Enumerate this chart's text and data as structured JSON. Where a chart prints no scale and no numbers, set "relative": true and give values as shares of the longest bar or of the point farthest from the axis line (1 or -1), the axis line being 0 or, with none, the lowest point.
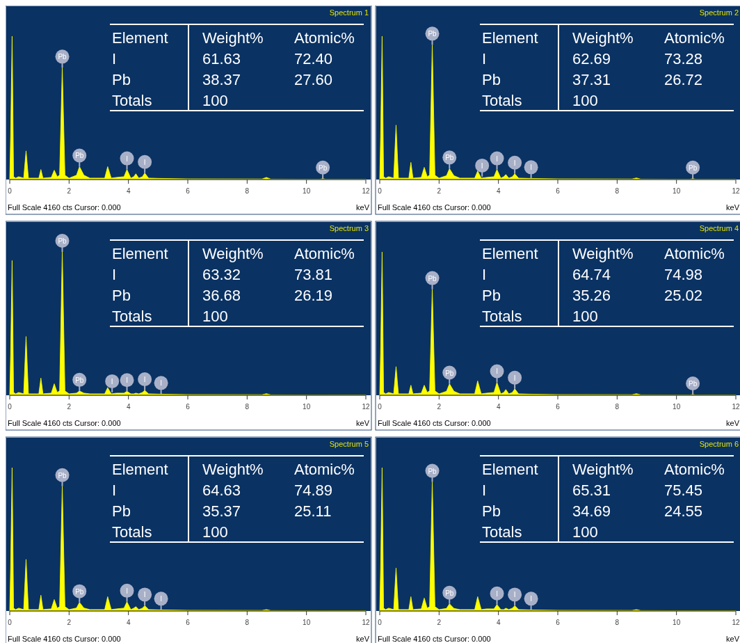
{
  "chart_data": [
    {
      "type": "area",
      "title": "Spectrum 1",
      "xlabel": "keV",
      "relative": true,
      "color": "#ffff00",
      "xlim": [
        0,
        12
      ],
      "xticks": [
        0,
        2,
        4,
        6,
        8,
        10,
        12
      ],
      "x": [
        0,
        0.03,
        0.08,
        0.13,
        0.2,
        0.3,
        0.47,
        0.55,
        0.63,
        0.75,
        0.98,
        1.05,
        1.12,
        1.4,
        1.5,
        1.6,
        1.68,
        1.77,
        1.86,
        2.0,
        2.25,
        2.35,
        2.5,
        2.7,
        3.2,
        3.3,
        3.42,
        3.6,
        3.85,
        3.95,
        4.08,
        4.18,
        4.25,
        4.35,
        4.47,
        4.55,
        4.68,
        5.0,
        6.0,
        8.5,
        8.65,
        8.8,
        10.45,
        10.55,
        10.65,
        12
      ],
      "values": [
        0,
        0.3,
        1,
        0.02,
        0.01,
        0.02,
        0.01,
        0.2,
        0.01,
        0.01,
        0.01,
        0.07,
        0.01,
        0.015,
        0.065,
        0.02,
        0.03,
        0.78,
        0.03,
        0.01,
        0.03,
        0.09,
        0.03,
        0.01,
        0.01,
        0.09,
        0.01,
        0.015,
        0.02,
        0.07,
        0.01,
        0.02,
        0.04,
        0.01,
        0.02,
        0.045,
        0.01,
        0.008,
        0.005,
        0.004,
        0.015,
        0.003,
        0.002,
        0.006,
        0.002,
        0.002
      ],
      "annotations": [
        "Element",
        "Weight%",
        "Atomic%",
        "I",
        "61.63",
        "72.40",
        "Pb",
        "38.37",
        "27.60",
        "Totals",
        "100",
        "Full Scale 4160 cts Cursor: 0.000",
        {
          "text": "Pb",
          "x": 1.77,
          "y": 0.78
        },
        {
          "text": "Pb",
          "x": 2.35,
          "y": 0.09
        },
        {
          "text": "I",
          "x": 3.95,
          "y": 0.07
        },
        {
          "text": "I",
          "x": 4.55,
          "y": 0.045
        },
        {
          "text": "Pb",
          "x": 10.55,
          "y": 0.006
        }
      ]
    },
    {
      "type": "area",
      "title": "Spectrum 2",
      "xlabel": "keV",
      "relative": true,
      "color": "#ffff00",
      "xlim": [
        0,
        12
      ],
      "xticks": [
        0,
        2,
        4,
        6,
        8,
        10,
        12
      ],
      "x": [
        0,
        0.03,
        0.08,
        0.13,
        0.2,
        0.3,
        0.47,
        0.55,
        0.63,
        0.75,
        0.98,
        1.05,
        1.12,
        1.4,
        1.5,
        1.6,
        1.68,
        1.77,
        1.86,
        2.0,
        2.25,
        2.35,
        2.5,
        2.7,
        3.2,
        3.3,
        3.42,
        3.6,
        3.85,
        3.95,
        4.08,
        4.18,
        4.25,
        4.35,
        4.47,
        4.55,
        4.68,
        5.0,
        6.0,
        8.5,
        8.65,
        8.8,
        10.45,
        10.55,
        10.65,
        12
      ],
      "values": [
        0,
        0.3,
        1,
        0.02,
        0.01,
        0.02,
        0.01,
        0.38,
        0.01,
        0.01,
        0.01,
        0.12,
        0.01,
        0.015,
        0.085,
        0.02,
        0.03,
        0.94,
        0.03,
        0.01,
        0.027,
        0.076,
        0.027,
        0.01,
        0.01,
        0.06,
        0.01,
        0.015,
        0.02,
        0.07,
        0.01,
        0.02,
        0.035,
        0.01,
        0.02,
        0.04,
        0.01,
        0.008,
        0.005,
        0.004,
        0.011,
        0.003,
        0.002,
        0.006,
        0.002,
        0.002
      ],
      "annotations": [
        "Element",
        "Weight%",
        "Atomic%",
        "I",
        "62.69",
        "73.28",
        "Pb",
        "37.31",
        "26.72",
        "Totals",
        "100",
        "Full Scale 4160 cts Cursor: 0.000",
        {
          "text": "Pb",
          "x": 1.77,
          "y": 0.94
        },
        {
          "text": "Pb",
          "x": 2.35,
          "y": 0.076
        },
        {
          "text": "I",
          "x": 3.45,
          "y": 0.02
        },
        {
          "text": "I",
          "x": 3.95,
          "y": 0.07
        },
        {
          "text": "I",
          "x": 4.55,
          "y": 0.04
        },
        {
          "text": "I",
          "x": 5.1,
          "y": 0.008
        },
        {
          "text": "Pb",
          "x": 10.55,
          "y": 0.006
        }
      ]
    },
    {
      "type": "area",
      "title": "Spectrum 3",
      "xlabel": "keV",
      "relative": true,
      "color": "#ffff00",
      "xlim": [
        0,
        12
      ],
      "xticks": [
        0,
        2,
        4,
        6,
        8,
        10,
        12
      ],
      "x": [
        0,
        0.03,
        0.08,
        0.13,
        0.2,
        0.3,
        0.47,
        0.55,
        0.63,
        0.75,
        0.98,
        1.05,
        1.12,
        1.4,
        1.5,
        1.6,
        1.68,
        1.77,
        1.86,
        2.0,
        2.25,
        2.35,
        2.5,
        2.7,
        3.2,
        3.3,
        3.42,
        3.6,
        3.85,
        3.95,
        4.08,
        4.18,
        4.25,
        4.35,
        4.47,
        4.55,
        4.68,
        5.0,
        6.0,
        8.5,
        8.65,
        8.8,
        10.45,
        10.55,
        10.65,
        12
      ],
      "values": [
        0,
        0.28,
        0.94,
        0.02,
        0.01,
        0.02,
        0.01,
        0.41,
        0.01,
        0.01,
        0.01,
        0.12,
        0.01,
        0.015,
        0.08,
        0.02,
        0.03,
        1,
        0.03,
        0.01,
        0.015,
        0.03,
        0.015,
        0.01,
        0.01,
        0.054,
        0.01,
        0.015,
        0.015,
        0.028,
        0.01,
        0.01,
        0.015,
        0.01,
        0.02,
        0.034,
        0.01,
        0.008,
        0.005,
        0.004,
        0.011,
        0.003,
        0.002,
        0.002,
        0.002,
        0.002
      ],
      "annotations": [
        "Element",
        "Weight%",
        "Atomic%",
        "I",
        "63.32",
        "73.81",
        "Pb",
        "36.68",
        "26.19",
        "Totals",
        "100",
        "Full Scale 4160 cts Cursor: 0.000",
        {
          "text": "Pb",
          "x": 1.77,
          "y": 1
        },
        {
          "text": "Pb",
          "x": 2.35,
          "y": 0.03
        },
        {
          "text": "I",
          "x": 3.45,
          "y": 0.02
        },
        {
          "text": "I",
          "x": 3.95,
          "y": 0.028
        },
        {
          "text": "I",
          "x": 4.55,
          "y": 0.034
        },
        {
          "text": "I",
          "x": 5.1,
          "y": 0.008
        }
      ]
    },
    {
      "type": "area",
      "title": "Spectrum 4",
      "xlabel": "keV",
      "relative": true,
      "color": "#ffff00",
      "xlim": [
        0,
        12
      ],
      "xticks": [
        0,
        2,
        4,
        6,
        8,
        10,
        12
      ],
      "x": [
        0,
        0.03,
        0.08,
        0.13,
        0.2,
        0.3,
        0.47,
        0.55,
        0.63,
        0.75,
        0.98,
        1.05,
        1.12,
        1.4,
        1.5,
        1.6,
        1.68,
        1.77,
        1.86,
        2.0,
        2.25,
        2.35,
        2.5,
        2.7,
        3.2,
        3.3,
        3.42,
        3.6,
        3.85,
        3.95,
        4.08,
        4.18,
        4.25,
        4.35,
        4.47,
        4.55,
        4.68,
        5.0,
        6.0,
        8.5,
        8.65,
        8.8,
        10.45,
        10.55,
        10.65,
        12
      ],
      "values": [
        0,
        0.3,
        1,
        0.02,
        0.01,
        0.02,
        0.01,
        0.2,
        0.01,
        0.01,
        0.01,
        0.07,
        0.01,
        0.015,
        0.07,
        0.02,
        0.03,
        0.74,
        0.03,
        0.01,
        0.028,
        0.08,
        0.028,
        0.01,
        0.01,
        0.1,
        0.01,
        0.015,
        0.02,
        0.09,
        0.01,
        0.02,
        0.04,
        0.01,
        0.02,
        0.045,
        0.01,
        0.008,
        0.005,
        0.004,
        0.011,
        0.003,
        0.002,
        0.005,
        0.002,
        0.002
      ],
      "annotations": [
        "Element",
        "Weight%",
        "Atomic%",
        "I",
        "64.74",
        "74.98",
        "Pb",
        "35.26",
        "25.02",
        "Totals",
        "100",
        "Full Scale 4160 cts Cursor: 0.000",
        {
          "text": "Pb",
          "x": 1.77,
          "y": 0.74
        },
        {
          "text": "Pb",
          "x": 2.35,
          "y": 0.08
        },
        {
          "text": "I",
          "x": 3.95,
          "y": 0.09
        },
        {
          "text": "I",
          "x": 4.55,
          "y": 0.045
        },
        {
          "text": "Pb",
          "x": 10.55,
          "y": 0.005
        }
      ]
    },
    {
      "type": "area",
      "title": "Spectrum 5",
      "xlabel": "keV",
      "relative": true,
      "color": "#ffff00",
      "xlim": [
        0,
        12
      ],
      "xticks": [
        0,
        2,
        4,
        6,
        8,
        10,
        12
      ],
      "x": [
        0,
        0.03,
        0.08,
        0.13,
        0.2,
        0.3,
        0.47,
        0.55,
        0.63,
        0.75,
        0.98,
        1.05,
        1.12,
        1.4,
        1.5,
        1.6,
        1.68,
        1.77,
        1.86,
        2.0,
        2.25,
        2.35,
        2.5,
        2.7,
        3.2,
        3.3,
        3.42,
        3.6,
        3.85,
        3.95,
        4.08,
        4.18,
        4.25,
        4.35,
        4.47,
        4.55,
        4.68,
        5.0,
        6.0,
        8.5,
        8.65,
        8.8,
        10.45,
        10.55,
        10.65,
        12
      ],
      "values": [
        0,
        0.3,
        1,
        0.02,
        0.01,
        0.02,
        0.01,
        0.36,
        0.01,
        0.01,
        0.01,
        0.11,
        0.01,
        0.015,
        0.08,
        0.02,
        0.03,
        0.87,
        0.03,
        0.01,
        0.021,
        0.06,
        0.021,
        0.01,
        0.01,
        0.1,
        0.01,
        0.015,
        0.02,
        0.064,
        0.01,
        0.02,
        0.03,
        0.01,
        0.02,
        0.037,
        0.01,
        0.008,
        0.005,
        0.004,
        0.01,
        0.003,
        0.002,
        0.002,
        0.002,
        0.002
      ],
      "annotations": [
        "Element",
        "Weight%",
        "Atomic%",
        "I",
        "64.63",
        "74.89",
        "Pb",
        "35.37",
        "25.11",
        "Totals",
        "100",
        "Full Scale 4160 cts Cursor: 0.000",
        {
          "text": "Pb",
          "x": 1.77,
          "y": 0.87
        },
        {
          "text": "Pb",
          "x": 2.35,
          "y": 0.06
        },
        {
          "text": "I",
          "x": 3.95,
          "y": 0.064
        },
        {
          "text": "I",
          "x": 4.55,
          "y": 0.037
        },
        {
          "text": "I",
          "x": 5.1,
          "y": 0.008
        }
      ]
    },
    {
      "type": "area",
      "title": "Spectrum 6",
      "xlabel": "keV",
      "relative": true,
      "color": "#ffff00",
      "xlim": [
        0,
        12
      ],
      "xticks": [
        0,
        2,
        4,
        6,
        8,
        10,
        12
      ],
      "x": [
        0,
        0.03,
        0.08,
        0.13,
        0.2,
        0.3,
        0.47,
        0.55,
        0.63,
        0.75,
        0.98,
        1.05,
        1.12,
        1.4,
        1.5,
        1.6,
        1.68,
        1.77,
        1.86,
        2.0,
        2.25,
        2.35,
        2.5,
        2.7,
        3.2,
        3.3,
        3.42,
        3.6,
        3.85,
        3.95,
        4.08,
        4.18,
        4.25,
        4.35,
        4.47,
        4.55,
        4.68,
        5.0,
        6.0,
        8.5,
        8.65,
        8.8,
        10.45,
        10.55,
        10.65,
        12
      ],
      "values": [
        0,
        0.3,
        1,
        0.02,
        0.01,
        0.02,
        0.01,
        0.3,
        0.01,
        0.01,
        0.01,
        0.1,
        0.01,
        0.015,
        0.09,
        0.02,
        0.03,
        0.9,
        0.03,
        0.01,
        0.018,
        0.05,
        0.018,
        0.01,
        0.01,
        0.1,
        0.01,
        0.015,
        0.015,
        0.045,
        0.01,
        0.01,
        0.02,
        0.01,
        0.02,
        0.037,
        0.01,
        0.008,
        0.005,
        0.004,
        0.01,
        0.003,
        0.002,
        0.002,
        0.002,
        0.002
      ],
      "annotations": [
        "Element",
        "Weight%",
        "Atomic%",
        "I",
        "65.31",
        "75.45",
        "Pb",
        "34.69",
        "24.55",
        "Totals",
        "100",
        "Full Scale 4160 cts Cursor: 0.000",
        {
          "text": "Pb",
          "x": 1.77,
          "y": 0.9
        },
        {
          "text": "Pb",
          "x": 2.35,
          "y": 0.05
        },
        {
          "text": "I",
          "x": 3.95,
          "y": 0.045
        },
        {
          "text": "I",
          "x": 4.55,
          "y": 0.037
        },
        {
          "text": "I",
          "x": 5.1,
          "y": 0.008
        }
      ]
    }
  ]
}
